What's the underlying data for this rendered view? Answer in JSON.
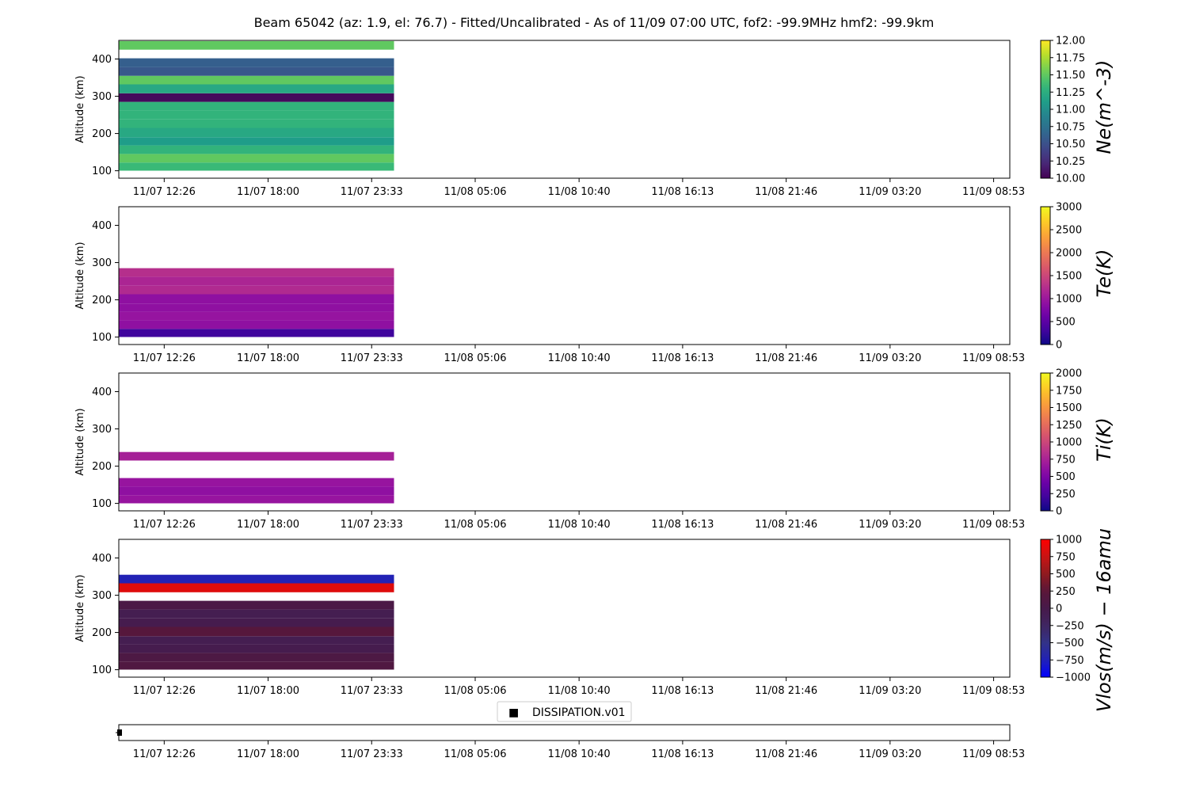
{
  "title": "Beam 65042 (az: 1.9, el: 76.7) - Fitted/Uncalibrated - As of 11/09 07:00 UTC, fof2: -99.9MHz  hmf2: -99.9km",
  "x_ticks": [
    "11/07 12:26",
    "11/07 18:00",
    "11/07 23:33",
    "11/08 05:06",
    "11/08 10:40",
    "11/08 16:13",
    "11/08 21:46",
    "11/09 03:20",
    "11/09 08:53"
  ],
  "y_ticks": [
    "100",
    "200",
    "300",
    "400"
  ],
  "y_label": "Altitude (km)",
  "legend": {
    "marker": "■",
    "label": "DISSIPATION.v01"
  },
  "chart_data": [
    {
      "type": "heatmap",
      "id": "ne",
      "colorbar_label": "Ne(m^-3)",
      "colormap": "viridis",
      "clim": [
        10.0,
        12.0
      ],
      "colorbar_ticks": [
        "10.00",
        "10.25",
        "10.50",
        "10.75",
        "11.00",
        "11.25",
        "11.50",
        "11.75",
        "12.00"
      ],
      "xlim": [
        "11/07 10:00",
        "11/09 09:45"
      ],
      "ylim": [
        80,
        450
      ],
      "x_range": [
        "11/07 10:00",
        "11/08 00:45"
      ],
      "rows": [
        {
          "alt": [
            100,
            122
          ],
          "v": 11.35
        },
        {
          "alt": [
            122,
            145
          ],
          "v": 11.5
        },
        {
          "alt": [
            145,
            168
          ],
          "v": 11.3
        },
        {
          "alt": [
            168,
            190
          ],
          "v": 11.1
        },
        {
          "alt": [
            190,
            215
          ],
          "v": 11.2
        },
        {
          "alt": [
            215,
            238
          ],
          "v": 11.3
        },
        {
          "alt": [
            238,
            262
          ],
          "v": 11.3
        },
        {
          "alt": [
            262,
            285
          ],
          "v": 11.3
        },
        {
          "alt": [
            285,
            308
          ],
          "v": 10.05
        },
        {
          "alt": [
            308,
            332
          ],
          "v": 11.2
        },
        {
          "alt": [
            332,
            355
          ],
          "v": 11.5
        },
        {
          "alt": [
            355,
            378
          ],
          "v": 10.55
        },
        {
          "alt": [
            378,
            402
          ],
          "v": 10.6
        },
        {
          "alt": [
            425,
            448
          ],
          "v": 11.5
        }
      ]
    },
    {
      "type": "heatmap",
      "id": "te",
      "colorbar_label": "Te(K)",
      "colormap": "plasma",
      "clim": [
        0,
        3000
      ],
      "colorbar_ticks": [
        "0",
        "500",
        "1000",
        "1500",
        "2000",
        "2500",
        "3000"
      ],
      "xlim": [
        "11/07 10:00",
        "11/09 09:45"
      ],
      "ylim": [
        80,
        450
      ],
      "x_range": [
        "11/07 10:00",
        "11/08 00:45"
      ],
      "rows": [
        {
          "alt": [
            100,
            122
          ],
          "v": 300
        },
        {
          "alt": [
            122,
            145
          ],
          "v": 900
        },
        {
          "alt": [
            145,
            168
          ],
          "v": 950
        },
        {
          "alt": [
            168,
            190
          ],
          "v": 900
        },
        {
          "alt": [
            190,
            215
          ],
          "v": 900
        },
        {
          "alt": [
            215,
            238
          ],
          "v": 1200
        },
        {
          "alt": [
            238,
            262
          ],
          "v": 1150
        },
        {
          "alt": [
            262,
            285
          ],
          "v": 1250
        }
      ]
    },
    {
      "type": "heatmap",
      "id": "ti",
      "colorbar_label": "Ti(K)",
      "colormap": "plasma",
      "clim": [
        0,
        2000
      ],
      "colorbar_ticks": [
        "0",
        "250",
        "500",
        "750",
        "1000",
        "1250",
        "1500",
        "1750",
        "2000"
      ],
      "xlim": [
        "11/07 10:00",
        "11/09 09:45"
      ],
      "ylim": [
        80,
        450
      ],
      "x_range": [
        "11/07 10:00",
        "11/08 00:45"
      ],
      "rows": [
        {
          "alt": [
            100,
            122
          ],
          "v": 640
        },
        {
          "alt": [
            122,
            145
          ],
          "v": 600
        },
        {
          "alt": [
            145,
            168
          ],
          "v": 640
        },
        {
          "alt": [
            215,
            238
          ],
          "v": 730
        }
      ]
    },
    {
      "type": "heatmap",
      "id": "vlos",
      "colorbar_label": "Vlos(m/s) − 16amu",
      "colormap": "seismic",
      "clim": [
        -1000,
        1000
      ],
      "colorbar_ticks": [
        "−1000",
        "−750",
        "−500",
        "−250",
        "0",
        "250",
        "500",
        "750",
        "1000"
      ],
      "xlim": [
        "11/07 10:00",
        "11/09 09:45"
      ],
      "ylim": [
        80,
        450
      ],
      "x_range": [
        "11/07 10:00",
        "11/08 00:45"
      ],
      "rows": [
        {
          "alt": [
            100,
            122
          ],
          "v": 120
        },
        {
          "alt": [
            122,
            145
          ],
          "v": 80
        },
        {
          "alt": [
            145,
            168
          ],
          "v": -50
        },
        {
          "alt": [
            168,
            190
          ],
          "v": -80
        },
        {
          "alt": [
            190,
            215
          ],
          "v": 200
        },
        {
          "alt": [
            215,
            238
          ],
          "v": -50
        },
        {
          "alt": [
            238,
            262
          ],
          "v": -80
        },
        {
          "alt": [
            262,
            285
          ],
          "v": 50
        },
        {
          "alt": [
            308,
            332
          ],
          "v": 850
        },
        {
          "alt": [
            332,
            355
          ],
          "v": -750
        }
      ]
    }
  ]
}
